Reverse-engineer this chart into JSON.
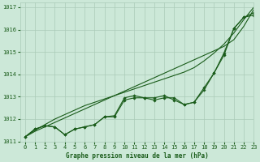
{
  "title": "Graphe pression niveau de la mer (hPa)",
  "background_color": "#cce8d8",
  "plot_bg_color": "#cce8d8",
  "grid_color": "#aacbb8",
  "line_color": "#1a5c1a",
  "xlim": [
    -0.5,
    23
  ],
  "ylim": [
    1011,
    1017.2
  ],
  "xticks": [
    0,
    1,
    2,
    3,
    4,
    5,
    6,
    7,
    8,
    9,
    10,
    11,
    12,
    13,
    14,
    15,
    16,
    17,
    18,
    19,
    20,
    21,
    22,
    23
  ],
  "yticks": [
    1011,
    1012,
    1013,
    1014,
    1015,
    1016,
    1017
  ],
  "series_curved": [
    [
      1011.2,
      1011.55,
      1011.7,
      1011.65,
      1011.3,
      1011.55,
      1011.65,
      1011.75,
      1012.1,
      1012.1,
      1012.85,
      1012.95,
      1012.95,
      1012.95,
      1013.05,
      1012.85,
      1012.65,
      1012.75,
      1013.3,
      1014.05,
      1014.85,
      1016.05,
      1016.55,
      1016.65
    ],
    [
      1011.2,
      1011.55,
      1011.7,
      1011.65,
      1011.3,
      1011.55,
      1011.65,
      1011.75,
      1012.1,
      1012.15,
      1012.95,
      1013.05,
      1012.95,
      1012.85,
      1012.95,
      1012.95,
      1012.65,
      1012.75,
      1013.4,
      1014.05,
      1014.95,
      1016.05,
      1016.55,
      1016.75
    ]
  ],
  "series_straight": [
    [
      1011.2,
      1011.45,
      1011.65,
      1011.85,
      1012.05,
      1012.25,
      1012.45,
      1012.65,
      1012.85,
      1013.05,
      1013.25,
      1013.45,
      1013.65,
      1013.85,
      1014.05,
      1014.25,
      1014.45,
      1014.65,
      1014.85,
      1015.05,
      1015.25,
      1015.55,
      1016.15,
      1016.9
    ],
    [
      1011.2,
      1011.5,
      1011.75,
      1012.0,
      1012.2,
      1012.4,
      1012.6,
      1012.75,
      1012.9,
      1013.05,
      1013.2,
      1013.35,
      1013.5,
      1013.65,
      1013.8,
      1013.95,
      1014.1,
      1014.3,
      1014.6,
      1014.95,
      1015.35,
      1015.85,
      1016.45,
      1017.0
    ]
  ]
}
